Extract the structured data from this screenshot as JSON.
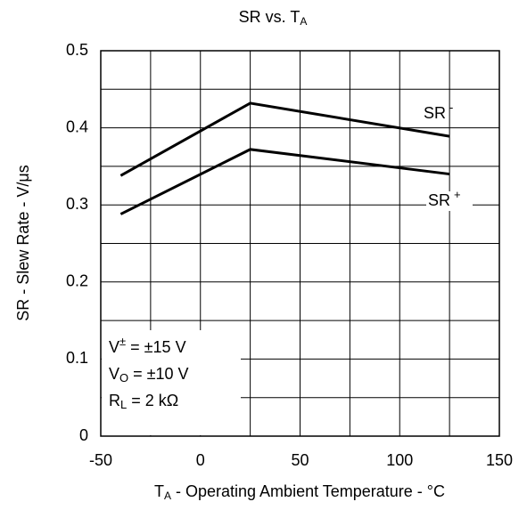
{
  "chart_data": {
    "type": "line",
    "title": {
      "text": "SR vs. T",
      "sub": "A"
    },
    "x_label": {
      "text": "T",
      "sub": "A",
      "rest": " - Operating Ambient Temperature - °C"
    },
    "y_label": "SR - Slew Rate - V/μs",
    "x": [
      -40,
      25,
      125
    ],
    "series": [
      {
        "name": "SR",
        "name_sup": "-",
        "color": "#000000",
        "values": [
          0.338,
          0.432,
          0.389
        ]
      },
      {
        "name": "SR",
        "name_sup": "+",
        "color": "#000000",
        "values": [
          0.288,
          0.372,
          0.34
        ]
      }
    ],
    "xlim": [
      -50,
      150
    ],
    "ylim": [
      0,
      0.5
    ],
    "xticks": [
      -50,
      0,
      50,
      100,
      150
    ],
    "yticks": [
      0,
      0.1,
      0.2,
      0.3,
      0.4,
      0.5
    ],
    "x_minor_grid": [
      -25,
      25,
      75,
      125
    ],
    "y_minor_grid": [
      0.05,
      0.15,
      0.25,
      0.35,
      0.45
    ],
    "grid": true,
    "annotations": [
      [
        {
          "t": "V",
          "s": "n"
        },
        {
          "t": "±",
          "s": "sup"
        },
        {
          "t": " = ±15 V",
          "s": "n"
        }
      ],
      [
        {
          "t": "V",
          "s": "n"
        },
        {
          "t": "O",
          "s": "sub"
        },
        {
          "t": " = ±10 V",
          "s": "n"
        }
      ],
      [
        {
          "t": "R",
          "s": "n"
        },
        {
          "t": "L",
          "s": "sub"
        },
        {
          "t": " = 2 kΩ",
          "s": "n"
        }
      ]
    ]
  }
}
